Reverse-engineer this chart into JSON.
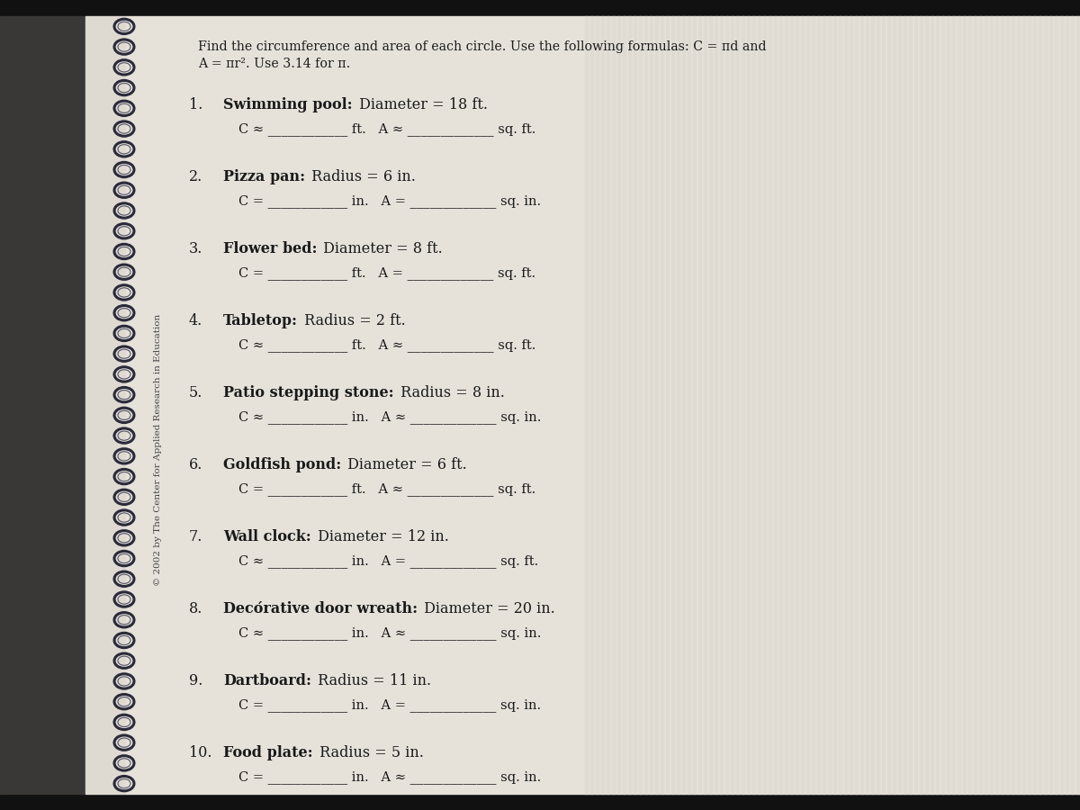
{
  "title_line1": "Find the circumference and area of each circle. Use the following formulas: C = πd and",
  "title_line2": "A = πr². Use 3.14 for π.",
  "bg_color": "#c8c4bc",
  "page_bg": "#e8e4dc",
  "items": [
    {
      "num": "1.",
      "bold": "Swimming pool:",
      "rest": " Diameter = 18 ft.",
      "answer": "C ≈ ____________ ft.   A ≈ _____________ sq. ft."
    },
    {
      "num": "2.",
      "bold": "Pizza pan:",
      "rest": " Radius = 6 in.",
      "answer": "C = ____________ in.   A = _____________ sq. in."
    },
    {
      "num": "3.",
      "bold": "Flower bed:",
      "rest": " Diameter = 8 ft.",
      "answer": "C = ____________ ft.   A = _____________ sq. ft."
    },
    {
      "num": "4.",
      "bold": "Tabletop:",
      "rest": " Radius = 2 ft.",
      "answer": "C ≈ ____________ ft.   A ≈ _____________ sq. ft."
    },
    {
      "num": "5.",
      "bold": "Patio stepping stone:",
      "rest": " Radius = 8 in.",
      "answer": "C ≈ ____________ in.   A ≈ _____________ sq. in."
    },
    {
      "num": "6.",
      "bold": "Goldfish pond:",
      "rest": " Diameter = 6 ft.",
      "answer": "C = ____________ ft.   A ≈ _____________ sq. ft."
    },
    {
      "num": "7.",
      "bold": "Wall clock:",
      "rest": " Diameter = 12 in.",
      "answer": "C ≈ ____________ in.   A = _____________ sq. ft."
    },
    {
      "num": "8.",
      "bold": "Decórative door wreath:",
      "rest": " Diameter = 20 in.",
      "answer": "C ≈ ____________ in.   A ≈ _____________ sq. in."
    },
    {
      "num": "9.",
      "bold": "Dartboard:",
      "rest": " Radius = 11 in.",
      "answer": "C = ____________ in.   A = _____________ sq. in."
    },
    {
      "num": "10.",
      "bold": "Food plate:",
      "rest": " Radius = 5 in.",
      "answer": "C = ____________ in.   A ≈ _____________ sq. in."
    }
  ],
  "copyright": "© 2002 by The Center for Applied Research in Education",
  "dark_band_color": "#1a1a2e",
  "spiral_color": "#2a2a3a",
  "left_page_bg": "#dedad2",
  "right_stripe_color": "#d0ccc4",
  "line_stripe_color": "#c4c0b8"
}
